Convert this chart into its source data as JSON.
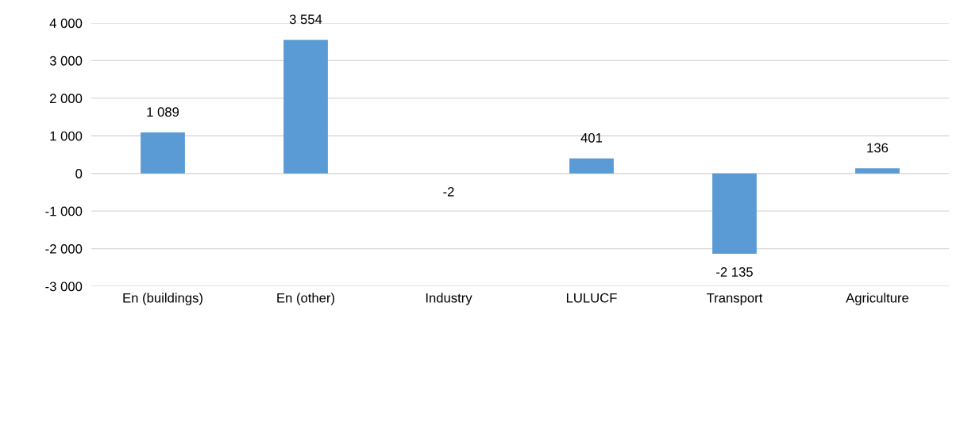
{
  "chart_data": {
    "type": "bar",
    "categories": [
      "En (buildings)",
      "En (other)",
      "Industry",
      "LULUCF",
      "Transport",
      "Agriculture"
    ],
    "values": [
      1089,
      3554,
      -2,
      401,
      -2135,
      136
    ],
    "value_labels": [
      "1 089",
      "3 554",
      "-2",
      "401",
      "-2 135",
      "136"
    ],
    "color": "#5b9bd5",
    "ylim": [
      -3000,
      4000
    ],
    "yticks": [
      {
        "value": -3000,
        "label": "-3 000"
      },
      {
        "value": -2000,
        "label": "-2 000"
      },
      {
        "value": -1000,
        "label": "-1 000"
      },
      0,
      {
        "value": 1000,
        "label": "1 000"
      },
      {
        "value": 2000,
        "label": "2 000"
      },
      {
        "value": 3000,
        "label": "3 000"
      },
      {
        "value": 4000,
        "label": "4 000"
      }
    ],
    "grid": "y",
    "legend": false
  }
}
